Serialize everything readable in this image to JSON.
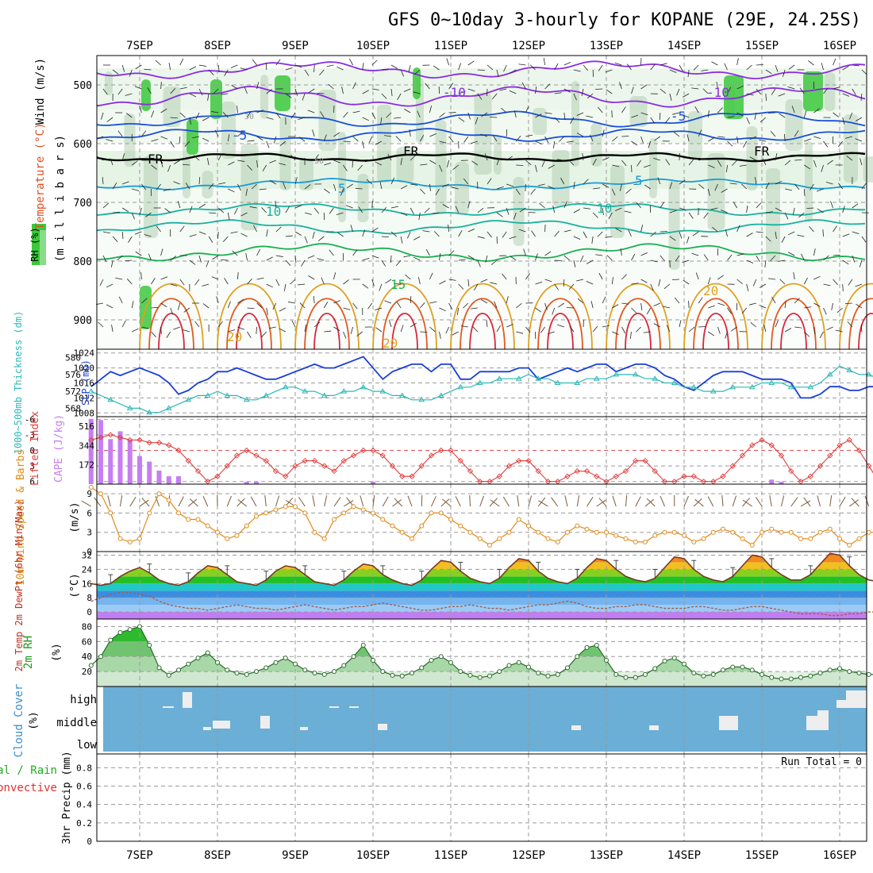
{
  "title": "GFS 0~10day 3-hourly for KOPANE (29E, 24.25S)",
  "dates": [
    "7SEP",
    "8SEP",
    "9SEP",
    "10SEP",
    "11SEP",
    "12SEP",
    "13SEP",
    "14SEP",
    "15SEP",
    "16SEP"
  ],
  "colors": {
    "rh_green": "#7fc77f",
    "slp": "#1a3fd6",
    "thickness": "#2db8b8",
    "lifted": "#e23b3b",
    "cape": "#c77ef2",
    "wind": "#e08a1a",
    "barb": "#7a5a3a",
    "rh2m": "#1c9a1c",
    "cloud": "#6baed6",
    "temp_line": "#7a3a20",
    "dew_line": "#a06050"
  },
  "upper": {
    "label_wind": "Wind (m/s)",
    "label_temp": "Temperature (°C)",
    "label_rh": "RH (%)",
    "label_mb": "(m i l l i b a r s)",
    "yticks": [
      "500",
      "600",
      "700",
      "800",
      "900"
    ],
    "contour_labels": [
      {
        "text": "-10",
        "color": "#8a2be2"
      },
      {
        "text": "-10",
        "color": "#8a2be2"
      },
      {
        "text": "-5",
        "color": "#1a4fd6"
      },
      {
        "text": "-5",
        "color": "#1a4fd6"
      },
      {
        "text": "FR",
        "color": "#000000"
      },
      {
        "text": "FR",
        "color": "#000000"
      },
      {
        "text": "FR",
        "color": "#000000"
      },
      {
        "text": "5",
        "color": "#1a9ad6"
      },
      {
        "text": "5",
        "color": "#1a9ad6"
      },
      {
        "text": "10",
        "color": "#19b0a0"
      },
      {
        "text": "10",
        "color": "#19b0a0"
      },
      {
        "text": "15",
        "color": "#19b050"
      },
      {
        "text": "20",
        "color": "#e0a020"
      },
      {
        "text": "20",
        "color": "#e0a020"
      },
      {
        "text": "20",
        "color": "#e0a020"
      },
      {
        "text": "50",
        "color": "#999999"
      },
      {
        "text": "30",
        "color": "#999999"
      }
    ]
  },
  "slp_panel": {
    "label_left": "1000~500mb Thickness (dm)",
    "label_right": "SLP (mb)",
    "left_ticks": [
      "580",
      "576",
      "572",
      "568"
    ],
    "right_ticks": [
      "1024",
      "1020",
      "1016",
      "1012",
      "1008"
    ]
  },
  "cape_panel": {
    "label_left": "Lifted Index",
    "label_right": "CAPE (J/kg)",
    "left_ticks": [
      "-6",
      "-3",
      "0",
      "3",
      "6"
    ],
    "right_ticks": [
      "516",
      "344",
      "172"
    ]
  },
  "wind_panel": {
    "label": "10m Wind Speed & Barbs",
    "unit": "(m/s)",
    "ticks": [
      "9",
      "6",
      "3",
      "0"
    ]
  },
  "temp_panel": {
    "label": "2m Temp 2m DewPt (6hr Min/Max)",
    "unit": "(°C)",
    "ticks": [
      "32",
      "24",
      "16",
      "8",
      "0"
    ]
  },
  "rh_panel": {
    "label": "2m RH",
    "unit": "(%)",
    "ticks": [
      "80",
      "60",
      "40",
      "20"
    ]
  },
  "cloud_panel": {
    "label": "Cloud Cover",
    "unit": "(%)",
    "ticks": [
      "high",
      "middle",
      "low"
    ]
  },
  "precip_panel": {
    "label_total": "Total / Rain",
    "label_conv": "Convective",
    "label_axis": "3hr Precip (mm)",
    "ticks": [
      "0.8",
      "0.6",
      "0.4",
      "0.2",
      "0"
    ],
    "run_total": "Run Total = 0"
  },
  "chart_data": {
    "type": "meteogram",
    "title": "GFS 0~10day 3-hourly for KOPANE (29E, 24.25S)",
    "x": "3-hourly forecast steps, 7SEP to 16SEP",
    "series": [
      {
        "name": "SLP (mb)",
        "range": [
          1008,
          1024
        ],
        "values": [
          1015,
          1017,
          1019,
          1018,
          1019,
          1020,
          1019,
          1018,
          1016,
          1013,
          1014,
          1016,
          1017,
          1019,
          1019,
          1020,
          1019,
          1018,
          1017,
          1017,
          1018,
          1019,
          1020,
          1021,
          1020,
          1020,
          1021,
          1022,
          1023,
          1020,
          1017,
          1019,
          1020,
          1021,
          1021,
          1019,
          1021,
          1021,
          1017,
          1017,
          1019,
          1019,
          1019,
          1019,
          1020,
          1020,
          1017,
          1018,
          1019,
          1020,
          1019,
          1020,
          1021,
          1021,
          1019,
          1020,
          1021,
          1021,
          1020,
          1018,
          1017,
          1015,
          1014,
          1016,
          1018,
          1019,
          1019,
          1019,
          1018,
          1017,
          1017,
          1017,
          1016,
          1012,
          1012,
          1013,
          1015,
          1015,
          1014,
          1014,
          1015,
          1015,
          1016
        ]
      },
      {
        "name": "1000-500mb Thickness (dm)",
        "range": [
          566,
          580
        ],
        "values": [
          572,
          571,
          570,
          569,
          568,
          568,
          567,
          567,
          568,
          569,
          570,
          571,
          571,
          572,
          571,
          571,
          570,
          570,
          571,
          572,
          573,
          573,
          572,
          572,
          571,
          571,
          572,
          572,
          573,
          572,
          572,
          571,
          571,
          570,
          570,
          570,
          571,
          572,
          573,
          573,
          574,
          574,
          575,
          575,
          575,
          576,
          575,
          575,
          574,
          574,
          574,
          575,
          575,
          575,
          576,
          576,
          576,
          575,
          575,
          574,
          574,
          573,
          573,
          572,
          572,
          572,
          573,
          573,
          573,
          574,
          574,
          574,
          573,
          573,
          573,
          574,
          576,
          578,
          577,
          576,
          576,
          575,
          576
        ]
      },
      {
        "name": "Lifted Index",
        "range": [
          -6,
          6
        ],
        "values": [
          -2,
          -2.5,
          -3,
          -2.5,
          -2,
          -2,
          -1.5,
          -1.5,
          -1,
          0,
          2,
          4,
          6,
          5,
          3,
          1,
          0,
          1,
          2,
          4,
          5,
          3,
          2,
          2,
          3,
          4,
          2,
          1,
          0,
          0,
          1,
          3,
          5,
          5,
          3,
          1,
          0,
          0,
          2,
          4,
          6,
          6,
          5,
          3,
          2,
          2,
          4,
          6,
          6,
          5,
          4,
          4,
          5,
          6,
          5,
          4,
          2,
          2,
          4,
          6,
          6,
          5,
          5,
          6,
          6,
          5,
          3,
          1,
          -1,
          -2,
          -1,
          1,
          4,
          6,
          5,
          3,
          1,
          -1,
          -2,
          0,
          3,
          6,
          6
        ]
      },
      {
        "name": "CAPE (J/kg)",
        "range": [
          0,
          600
        ],
        "values": [
          580,
          570,
          400,
          470,
          390,
          250,
          200,
          120,
          70,
          70,
          0,
          0,
          0,
          0,
          0,
          0,
          20,
          20,
          0,
          0,
          0,
          0,
          0,
          0,
          0,
          0,
          0,
          0,
          0,
          20,
          0,
          0,
          0,
          0,
          0,
          0,
          0,
          0,
          0,
          0,
          0,
          0,
          0,
          0,
          0,
          0,
          0,
          0,
          0,
          0,
          0,
          0,
          0,
          0,
          0,
          0,
          0,
          0,
          0,
          0,
          0,
          0,
          0,
          0,
          0,
          0,
          0,
          0,
          0,
          0,
          40,
          20,
          0,
          0,
          0,
          0,
          0,
          0,
          0,
          0,
          0,
          0,
          0
        ]
      },
      {
        "name": "10m Wind Speed (m/s)",
        "range": [
          0,
          10
        ],
        "values": [
          10,
          9,
          6,
          2,
          1.5,
          2,
          6,
          9,
          8,
          6,
          5,
          5,
          4,
          3,
          2,
          2.5,
          4,
          5.5,
          6,
          6.5,
          7,
          7,
          6,
          3,
          2,
          5,
          6,
          7,
          6.5,
          6,
          5,
          4,
          3,
          2,
          4,
          6,
          6,
          5,
          4,
          3,
          2,
          1,
          2,
          3,
          5,
          4,
          3,
          2,
          1.5,
          3,
          4,
          3.5,
          3,
          3,
          2.5,
          2,
          1.5,
          1.5,
          2.5,
          3,
          3,
          2.5,
          1.5,
          2,
          3,
          3.5,
          3,
          2,
          1,
          3,
          3.5,
          3,
          3,
          2,
          2,
          3,
          3.5,
          2,
          1,
          2,
          3,
          3,
          3
        ]
      },
      {
        "name": "2m Temp (°C)",
        "range": [
          -4,
          34
        ],
        "values": [
          16,
          15,
          16,
          20,
          23,
          25,
          22,
          18,
          16,
          15,
          17,
          22,
          26,
          25,
          21,
          17,
          16,
          15,
          18,
          23,
          26,
          25,
          21,
          17,
          16,
          15,
          18,
          23,
          27,
          26,
          21,
          18,
          16,
          15,
          18,
          24,
          29,
          28,
          23,
          19,
          17,
          16,
          19,
          25,
          30,
          29,
          23,
          19,
          17,
          16,
          19,
          25,
          30,
          29,
          24,
          20,
          18,
          17,
          19,
          25,
          31,
          30,
          24,
          20,
          18,
          17,
          20,
          26,
          32,
          31,
          25,
          21,
          18,
          18,
          21,
          27,
          33,
          32,
          26,
          21,
          18,
          17,
          20
        ]
      },
      {
        "name": "2m DewPt (°C)",
        "range": [
          -4,
          34
        ],
        "values": [
          6,
          8,
          10,
          11,
          11,
          10,
          9,
          6,
          4,
          3,
          2,
          2,
          1,
          2,
          3,
          4,
          3,
          2,
          2,
          1,
          2,
          3,
          4,
          3,
          2,
          1,
          2,
          3,
          3,
          4,
          5,
          4,
          3,
          2,
          1,
          1,
          2,
          3,
          3,
          4,
          3,
          2,
          2,
          1,
          2,
          3,
          4,
          4,
          5,
          6,
          5,
          3,
          2,
          2,
          3,
          3,
          4,
          4,
          3,
          2,
          2,
          2,
          3,
          3,
          2,
          1,
          1,
          2,
          3,
          3,
          2,
          1,
          0,
          -1,
          -1,
          -1,
          -2,
          -2,
          -1,
          -1,
          0,
          0,
          -1
        ]
      },
      {
        "name": "2m RH (%)",
        "range": [
          0,
          90
        ],
        "values": [
          28,
          40,
          62,
          72,
          76,
          80,
          55,
          25,
          15,
          22,
          30,
          38,
          45,
          32,
          22,
          18,
          16,
          20,
          25,
          32,
          38,
          30,
          22,
          18,
          16,
          20,
          28,
          40,
          55,
          35,
          20,
          15,
          14,
          18,
          25,
          35,
          40,
          32,
          20,
          15,
          12,
          14,
          20,
          28,
          32,
          26,
          18,
          14,
          16,
          25,
          40,
          52,
          55,
          35,
          16,
          12,
          12,
          16,
          24,
          34,
          38,
          30,
          18,
          14,
          16,
          22,
          26,
          26,
          22,
          16,
          12,
          10,
          10,
          12,
          14,
          18,
          22,
          24,
          20,
          18,
          16,
          16,
          14
        ]
      },
      {
        "name": "3hr Precip (mm)",
        "range": [
          0,
          1
        ],
        "values": []
      }
    ],
    "run_total": "Run Total = 0"
  }
}
